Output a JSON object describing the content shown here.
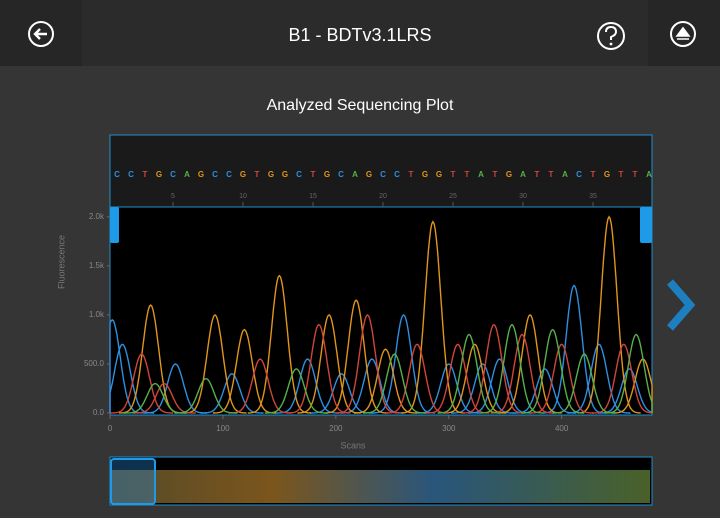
{
  "header": {
    "title": "B1 - BDTv3.1LRS"
  },
  "chart_data": {
    "type": "line",
    "title": "Analyzed Sequencing Plot",
    "xlabel": "Scans",
    "ylabel": "Fluorescence",
    "xlim": [
      0,
      480
    ],
    "ylim": [
      0,
      2100
    ],
    "xticks": [
      0,
      100,
      200,
      300,
      400
    ],
    "yticks": [
      {
        "value": 0,
        "label": "0.0"
      },
      {
        "value": 500,
        "label": "500.0"
      },
      {
        "value": 1000,
        "label": "1.0k"
      },
      {
        "value": 1500,
        "label": "1.5k"
      },
      {
        "value": 2000,
        "label": "2.0k"
      }
    ],
    "series": [
      {
        "color": "#2f8fe0",
        "x": [
          2,
          11,
          58,
          108,
          175,
          205,
          232,
          260,
          300,
          330,
          345,
          385,
          411,
          433,
          460
        ],
        "values": [
          950,
          700,
          500,
          400,
          550,
          400,
          550,
          1000,
          500,
          500,
          550,
          450,
          1300,
          700,
          450
        ]
      },
      {
        "color": "#e0951c",
        "x": [
          36,
          93,
          119,
          150,
          194,
          218,
          244,
          286,
          323,
          372,
          442,
          472
        ],
        "values": [
          1100,
          1000,
          850,
          1400,
          1000,
          1150,
          650,
          1950,
          700,
          1000,
          2000,
          550
        ]
      },
      {
        "color": "#d0453a",
        "x": [
          28,
          48,
          133,
          185,
          228,
          272,
          308,
          340,
          365,
          400,
          455
        ],
        "values": [
          600,
          300,
          550,
          900,
          1000,
          700,
          700,
          900,
          800,
          700,
          700
        ]
      },
      {
        "color": "#58b04a",
        "x": [
          40,
          85,
          165,
          252,
          318,
          356,
          392,
          420,
          466
        ],
        "values": [
          300,
          350,
          450,
          600,
          800,
          900,
          850,
          600,
          800
        ]
      }
    ],
    "base_calls": {
      "bases": [
        "C",
        "C",
        "T",
        "G",
        "C",
        "A",
        "G",
        "C",
        "C",
        "G",
        "T",
        "G",
        "G",
        "C",
        "T",
        "G",
        "C",
        "A",
        "G",
        "C",
        "C",
        "T",
        "G",
        "G",
        "T",
        "T",
        "A",
        "T",
        "G",
        "A",
        "T",
        "T",
        "A",
        "C",
        "T",
        "G",
        "T",
        "T",
        "A"
      ],
      "colors": {
        "A": "#58b04a",
        "C": "#2f8fe0",
        "G": "#e0951c",
        "T": "#d0453a"
      },
      "position_ticks": [
        5,
        10,
        15,
        20,
        25,
        30,
        35
      ]
    }
  }
}
